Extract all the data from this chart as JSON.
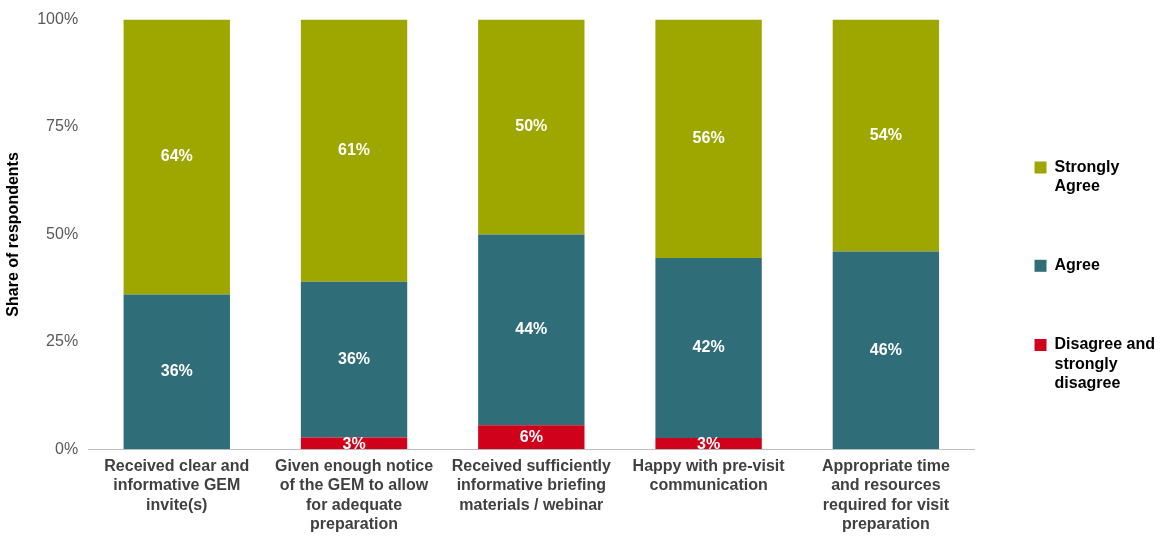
{
  "chart_data": {
    "type": "bar",
    "stacked": true,
    "ylabel": "Share of respondents",
    "categories": [
      "Received clear and informative GEM invite(s)",
      "Given enough notice of the GEM to allow for adequate preparation",
      "Received sufficiently informative briefing materials / webinar",
      "Happy with pre-visit communication",
      "Appropriate time and resources required for visit preparation"
    ],
    "series": [
      {
        "name": "Disagree and strongly disagree",
        "color": "#d0021b",
        "values": [
          null,
          2.7,
          5.6,
          2.6,
          null
        ],
        "value_labels": [
          null,
          "3%",
          "6%",
          "3%",
          null
        ]
      },
      {
        "name": "Agree",
        "color": "#2f6d79",
        "values": [
          36,
          36.3,
          44.4,
          41.9,
          46
        ],
        "value_labels": [
          "36%",
          "36%",
          "44%",
          "42%",
          "46%"
        ]
      },
      {
        "name": "Strongly Agree",
        "color": "#9ea700",
        "values": [
          64,
          61,
          50,
          55.5,
          54
        ],
        "value_labels": [
          "64%",
          "61%",
          "50%",
          "56%",
          "54%"
        ]
      }
    ],
    "ylim": [
      0,
      100
    ],
    "yticks": [
      {
        "value": 0,
        "label": "0%"
      },
      {
        "value": 25,
        "label": "25%"
      },
      {
        "value": 50,
        "label": "50%"
      },
      {
        "value": 75,
        "label": "75%"
      },
      {
        "value": 100,
        "label": "100%"
      }
    ],
    "grid": false,
    "legend": "right"
  }
}
